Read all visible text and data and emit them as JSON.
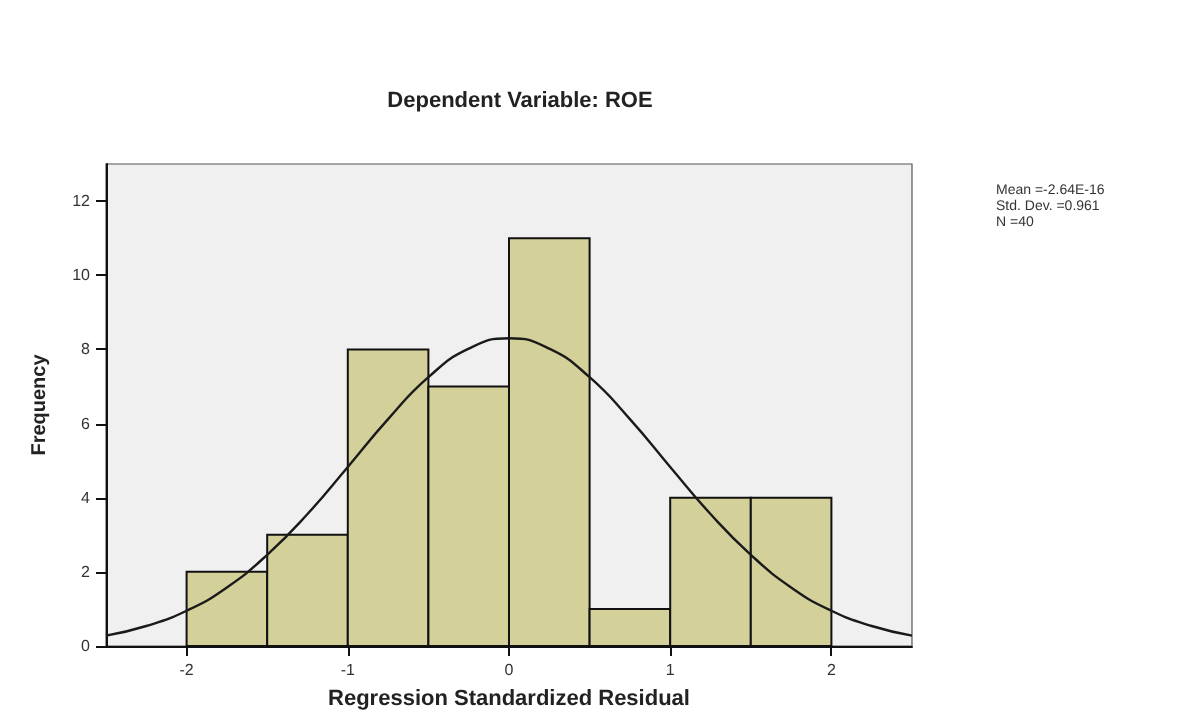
{
  "chart_data": {
    "type": "histogram",
    "title": "Dependent Variable: ROE",
    "xlabel": "Regression Standardized Residual",
    "ylabel": "Frequency",
    "annotations": [
      "Mean =-2.64E-16",
      "Std. Dev. =0.961",
      "N =40"
    ],
    "xlim": [
      -2.5,
      2.5
    ],
    "xticks": [
      -2,
      -1,
      0,
      1,
      2
    ],
    "ylim": [
      0,
      13
    ],
    "yticks": [
      0,
      2,
      4,
      6,
      8,
      10,
      12
    ],
    "grid": false,
    "series": [
      {
        "color": "#d4d09a",
        "bins": [
          -2,
          -1.5,
          -1,
          -0.5,
          0,
          0.5,
          1,
          1.5,
          2
        ],
        "values": [
          2,
          3,
          8,
          7,
          11,
          1,
          4,
          4
        ]
      },
      {
        "type": "line",
        "color": "#1a1a1a",
        "marker": "none",
        "x": [
          -2.5,
          -2.25,
          -2,
          -1.75,
          -1.5,
          -1.25,
          -1,
          -0.75,
          -0.5,
          -0.25,
          0,
          0.25,
          0.5,
          0.75,
          1,
          1.25,
          1.5,
          1.75,
          2,
          2.25,
          2.5
        ],
        "values": [
          0.28,
          0.54,
          0.95,
          1.58,
          2.46,
          3.56,
          4.83,
          6.12,
          7.25,
          8.02,
          8.3,
          8.02,
          7.25,
          6.12,
          4.83,
          3.56,
          2.46,
          1.58,
          0.95,
          0.54,
          0.28
        ]
      }
    ]
  }
}
